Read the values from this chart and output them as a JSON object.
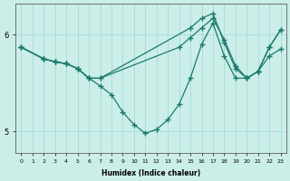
{
  "xlabel": "Humidex (Indice chaleur)",
  "background_color": "#cceee8",
  "grid_color": "#aadddd",
  "line_color": "#1a7a6e",
  "xlim": [
    -0.5,
    23.5
  ],
  "ylim": [
    4.78,
    6.32
  ],
  "yticks": [
    5,
    6
  ],
  "xticks": [
    0,
    1,
    2,
    3,
    4,
    5,
    6,
    7,
    8,
    9,
    10,
    11,
    12,
    13,
    14,
    15,
    16,
    17,
    18,
    19,
    20,
    21,
    22,
    23
  ],
  "line1_x": [
    0,
    2,
    3,
    4,
    5,
    6,
    7,
    8,
    9,
    10,
    11,
    12,
    13,
    14,
    15,
    16,
    17,
    18,
    19,
    20,
    21,
    22,
    23
  ],
  "line1_y": [
    5.87,
    5.75,
    5.72,
    5.7,
    5.65,
    5.55,
    5.47,
    5.38,
    5.2,
    5.07,
    4.98,
    5.02,
    5.12,
    5.28,
    5.55,
    5.9,
    6.12,
    5.78,
    5.55,
    5.55,
    5.62,
    5.78,
    5.85
  ],
  "line2_x": [
    0,
    2,
    3,
    4,
    5,
    6,
    7,
    14,
    15,
    16,
    17,
    18,
    19,
    20,
    21,
    22,
    23
  ],
  "line2_y": [
    5.87,
    5.75,
    5.72,
    5.7,
    5.65,
    5.55,
    5.55,
    5.87,
    5.97,
    6.07,
    6.17,
    5.95,
    5.68,
    5.55,
    5.62,
    5.87,
    6.05
  ],
  "line3_x": [
    0,
    2,
    3,
    4,
    5,
    6,
    7,
    15,
    16,
    17,
    18,
    19,
    20,
    21,
    22,
    23
  ],
  "line3_y": [
    5.87,
    5.75,
    5.72,
    5.7,
    5.65,
    5.55,
    5.55,
    6.07,
    6.17,
    6.22,
    5.92,
    5.65,
    5.55,
    5.62,
    5.87,
    6.05
  ]
}
